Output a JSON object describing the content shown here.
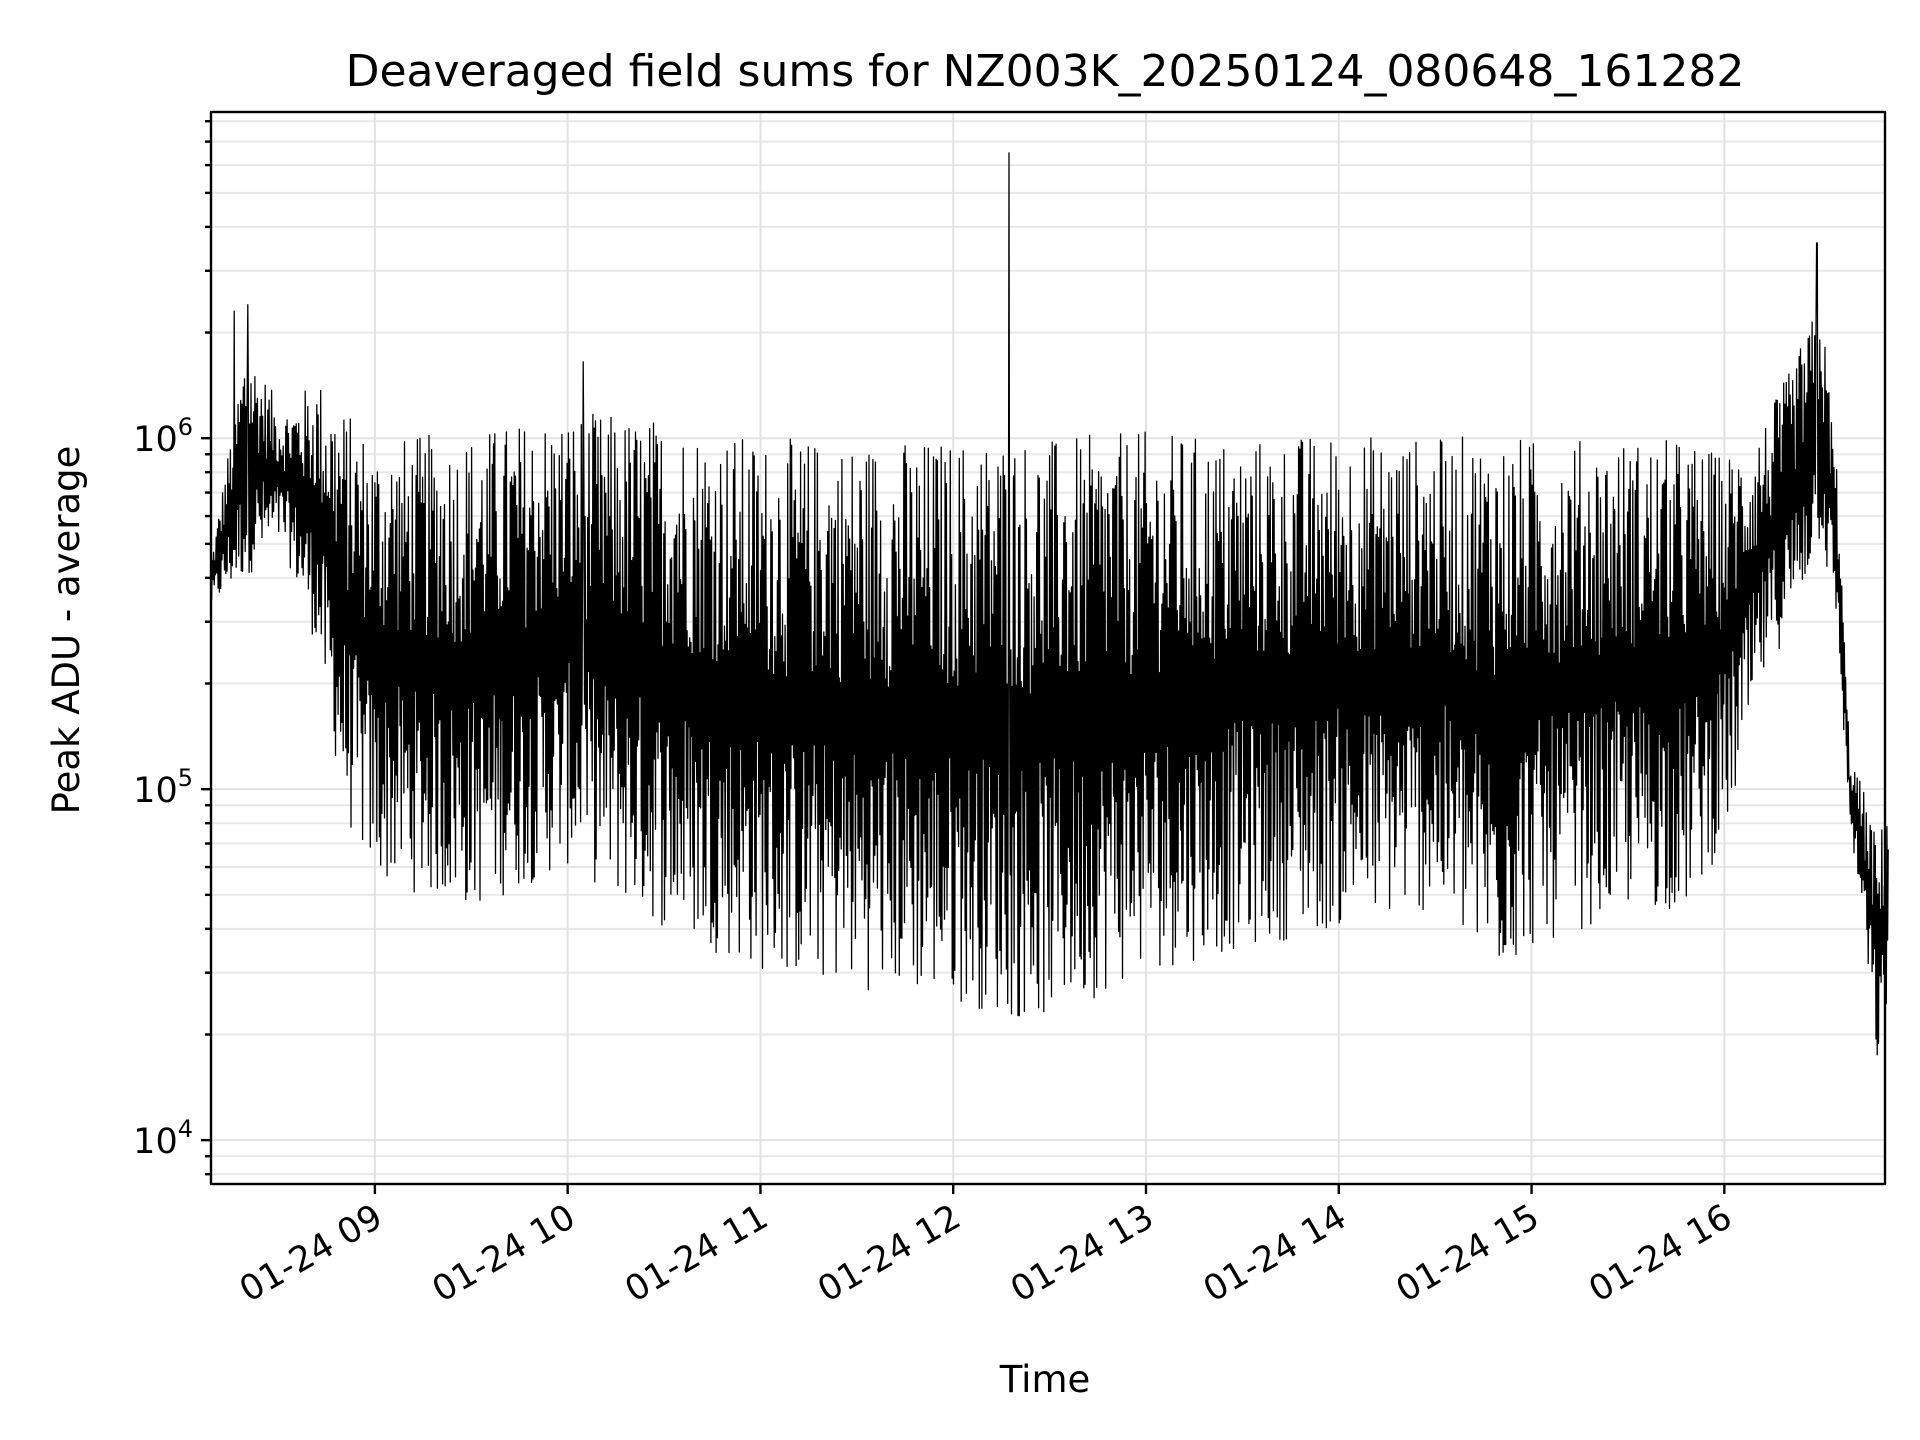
{
  "chart_data": {
    "type": "line",
    "title": "Deaveraged field sums for NZ003K_20250124_080648_161282",
    "xlabel": "Time",
    "ylabel": "Peak ADU - average",
    "yscale": "log",
    "xlim": [
      "01-24 08:09",
      "01-24 16:50"
    ],
    "ylim": [
      7500,
      8500000
    ],
    "grid": true,
    "x_ticks": [
      "01-24 09",
      "01-24 10",
      "01-24 11",
      "01-24 12",
      "01-24 13",
      "01-24 14",
      "01-24 15",
      "01-24 16"
    ],
    "y_ticks": [
      {
        "base": "10",
        "exp": "4",
        "value": 10000
      },
      {
        "base": "10",
        "exp": "5",
        "value": 100000
      },
      {
        "base": "10",
        "exp": "6",
        "value": 1000000
      }
    ],
    "series": [
      {
        "color": "#000000",
        "x_hours": [
          8.15,
          8.33,
          8.52,
          8.7,
          8.85,
          9.0,
          9.5,
          10.0,
          10.5,
          11.0,
          11.5,
          12.0,
          12.3,
          12.5,
          13.0,
          13.5,
          14.0,
          14.5,
          14.8,
          15.0,
          15.5,
          15.8,
          16.0,
          16.2,
          16.35,
          16.5,
          16.58,
          16.65,
          16.72,
          16.8,
          16.85
        ],
        "low": [
          330000,
          400000,
          500000,
          250000,
          80000,
          55000,
          45000,
          60000,
          40000,
          30000,
          27000,
          25000,
          22000,
          22000,
          30000,
          35000,
          40000,
          45000,
          28000,
          35000,
          45000,
          45000,
          70000,
          200000,
          300000,
          500000,
          300000,
          80000,
          40000,
          15000,
          25000
        ],
        "high": [
          450000,
          1900000,
          1200000,
          1500000,
          1200000,
          1000000,
          1050000,
          1200000,
          1150000,
          1000000,
          1000000,
          1000000,
          1050000,
          1000000,
          1050000,
          1000000,
          1050000,
          1000000,
          1050000,
          1000000,
          1000000,
          1000000,
          900000,
          1100000,
          1600000,
          2500000,
          900000,
          130000,
          100000,
          70000,
          100000
        ],
        "spikes": [
          {
            "t": 8.27,
            "v": 2300000
          },
          {
            "t": 8.34,
            "v": 2400000
          },
          {
            "t": 10.08,
            "v": 1650000
          },
          {
            "t": 12.29,
            "v": 6500000
          },
          {
            "t": 16.48,
            "v": 3600000
          }
        ]
      }
    ]
  }
}
